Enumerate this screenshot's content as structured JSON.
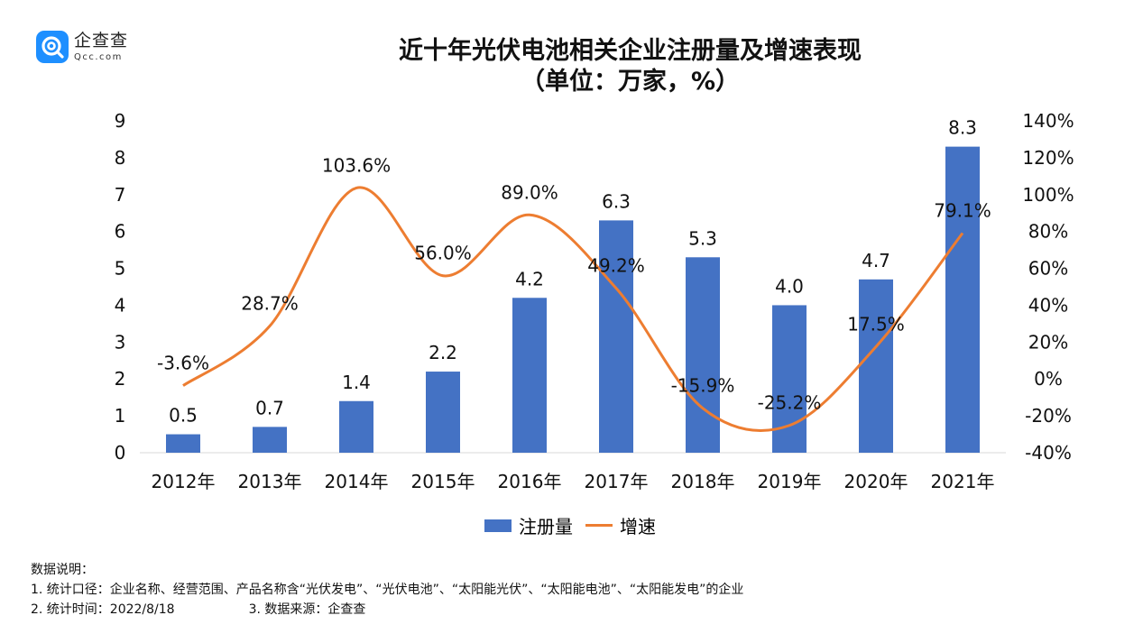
{
  "logo": {
    "name_cn": "企查查",
    "name_en": "Qcc.com"
  },
  "title_line1": "近十年光伏电池相关企业注册量及增速表现",
  "title_line2": "（单位：万家，%）",
  "chart_data": {
    "type": "bar+line",
    "categories": [
      "2012年",
      "2013年",
      "2014年",
      "2015年",
      "2016年",
      "2017年",
      "2018年",
      "2019年",
      "2020年",
      "2021年"
    ],
    "series": [
      {
        "name": "注册量",
        "type": "bar",
        "axis": "left",
        "values": [
          0.5,
          0.7,
          1.4,
          2.2,
          4.2,
          6.3,
          5.3,
          4.0,
          4.7,
          8.3
        ],
        "labels": [
          "0.5",
          "0.7",
          "1.4",
          "2.2",
          "4.2",
          "6.3",
          "5.3",
          "4.0",
          "4.7",
          "8.3"
        ],
        "color": "#4472c4"
      },
      {
        "name": "增速",
        "type": "line",
        "axis": "right",
        "values": [
          -3.6,
          28.7,
          103.6,
          56.0,
          89.0,
          49.2,
          -15.9,
          -25.2,
          17.5,
          79.1
        ],
        "labels": [
          "-3.6%",
          "28.7%",
          "103.6%",
          "56.0%",
          "89.0%",
          "49.2%",
          "-15.9%",
          "-25.2%",
          "17.5%",
          "79.1%"
        ],
        "color": "#ed7d31"
      }
    ],
    "left_axis": {
      "ylim": [
        0,
        9
      ],
      "ticks": [
        "0",
        "1",
        "2",
        "3",
        "4",
        "5",
        "6",
        "7",
        "8",
        "9"
      ]
    },
    "right_axis": {
      "ylim": [
        -40,
        140
      ],
      "ticks": [
        "-40%",
        "-20%",
        "0%",
        "20%",
        "40%",
        "60%",
        "80%",
        "100%",
        "120%",
        "140%"
      ]
    },
    "legend_position": "bottom-center"
  },
  "notes": {
    "heading": "数据说明：",
    "line1": "1. 统计口径：企业名称、经营范围、产品名称含“光伏发电”、“光伏电池”、“太阳能光伏”、“太阳能电池”、“太阳能发电”的企业",
    "line2a": "2. 统计时间：2022/8/18",
    "line2b": "3. 数据来源：企查查"
  }
}
